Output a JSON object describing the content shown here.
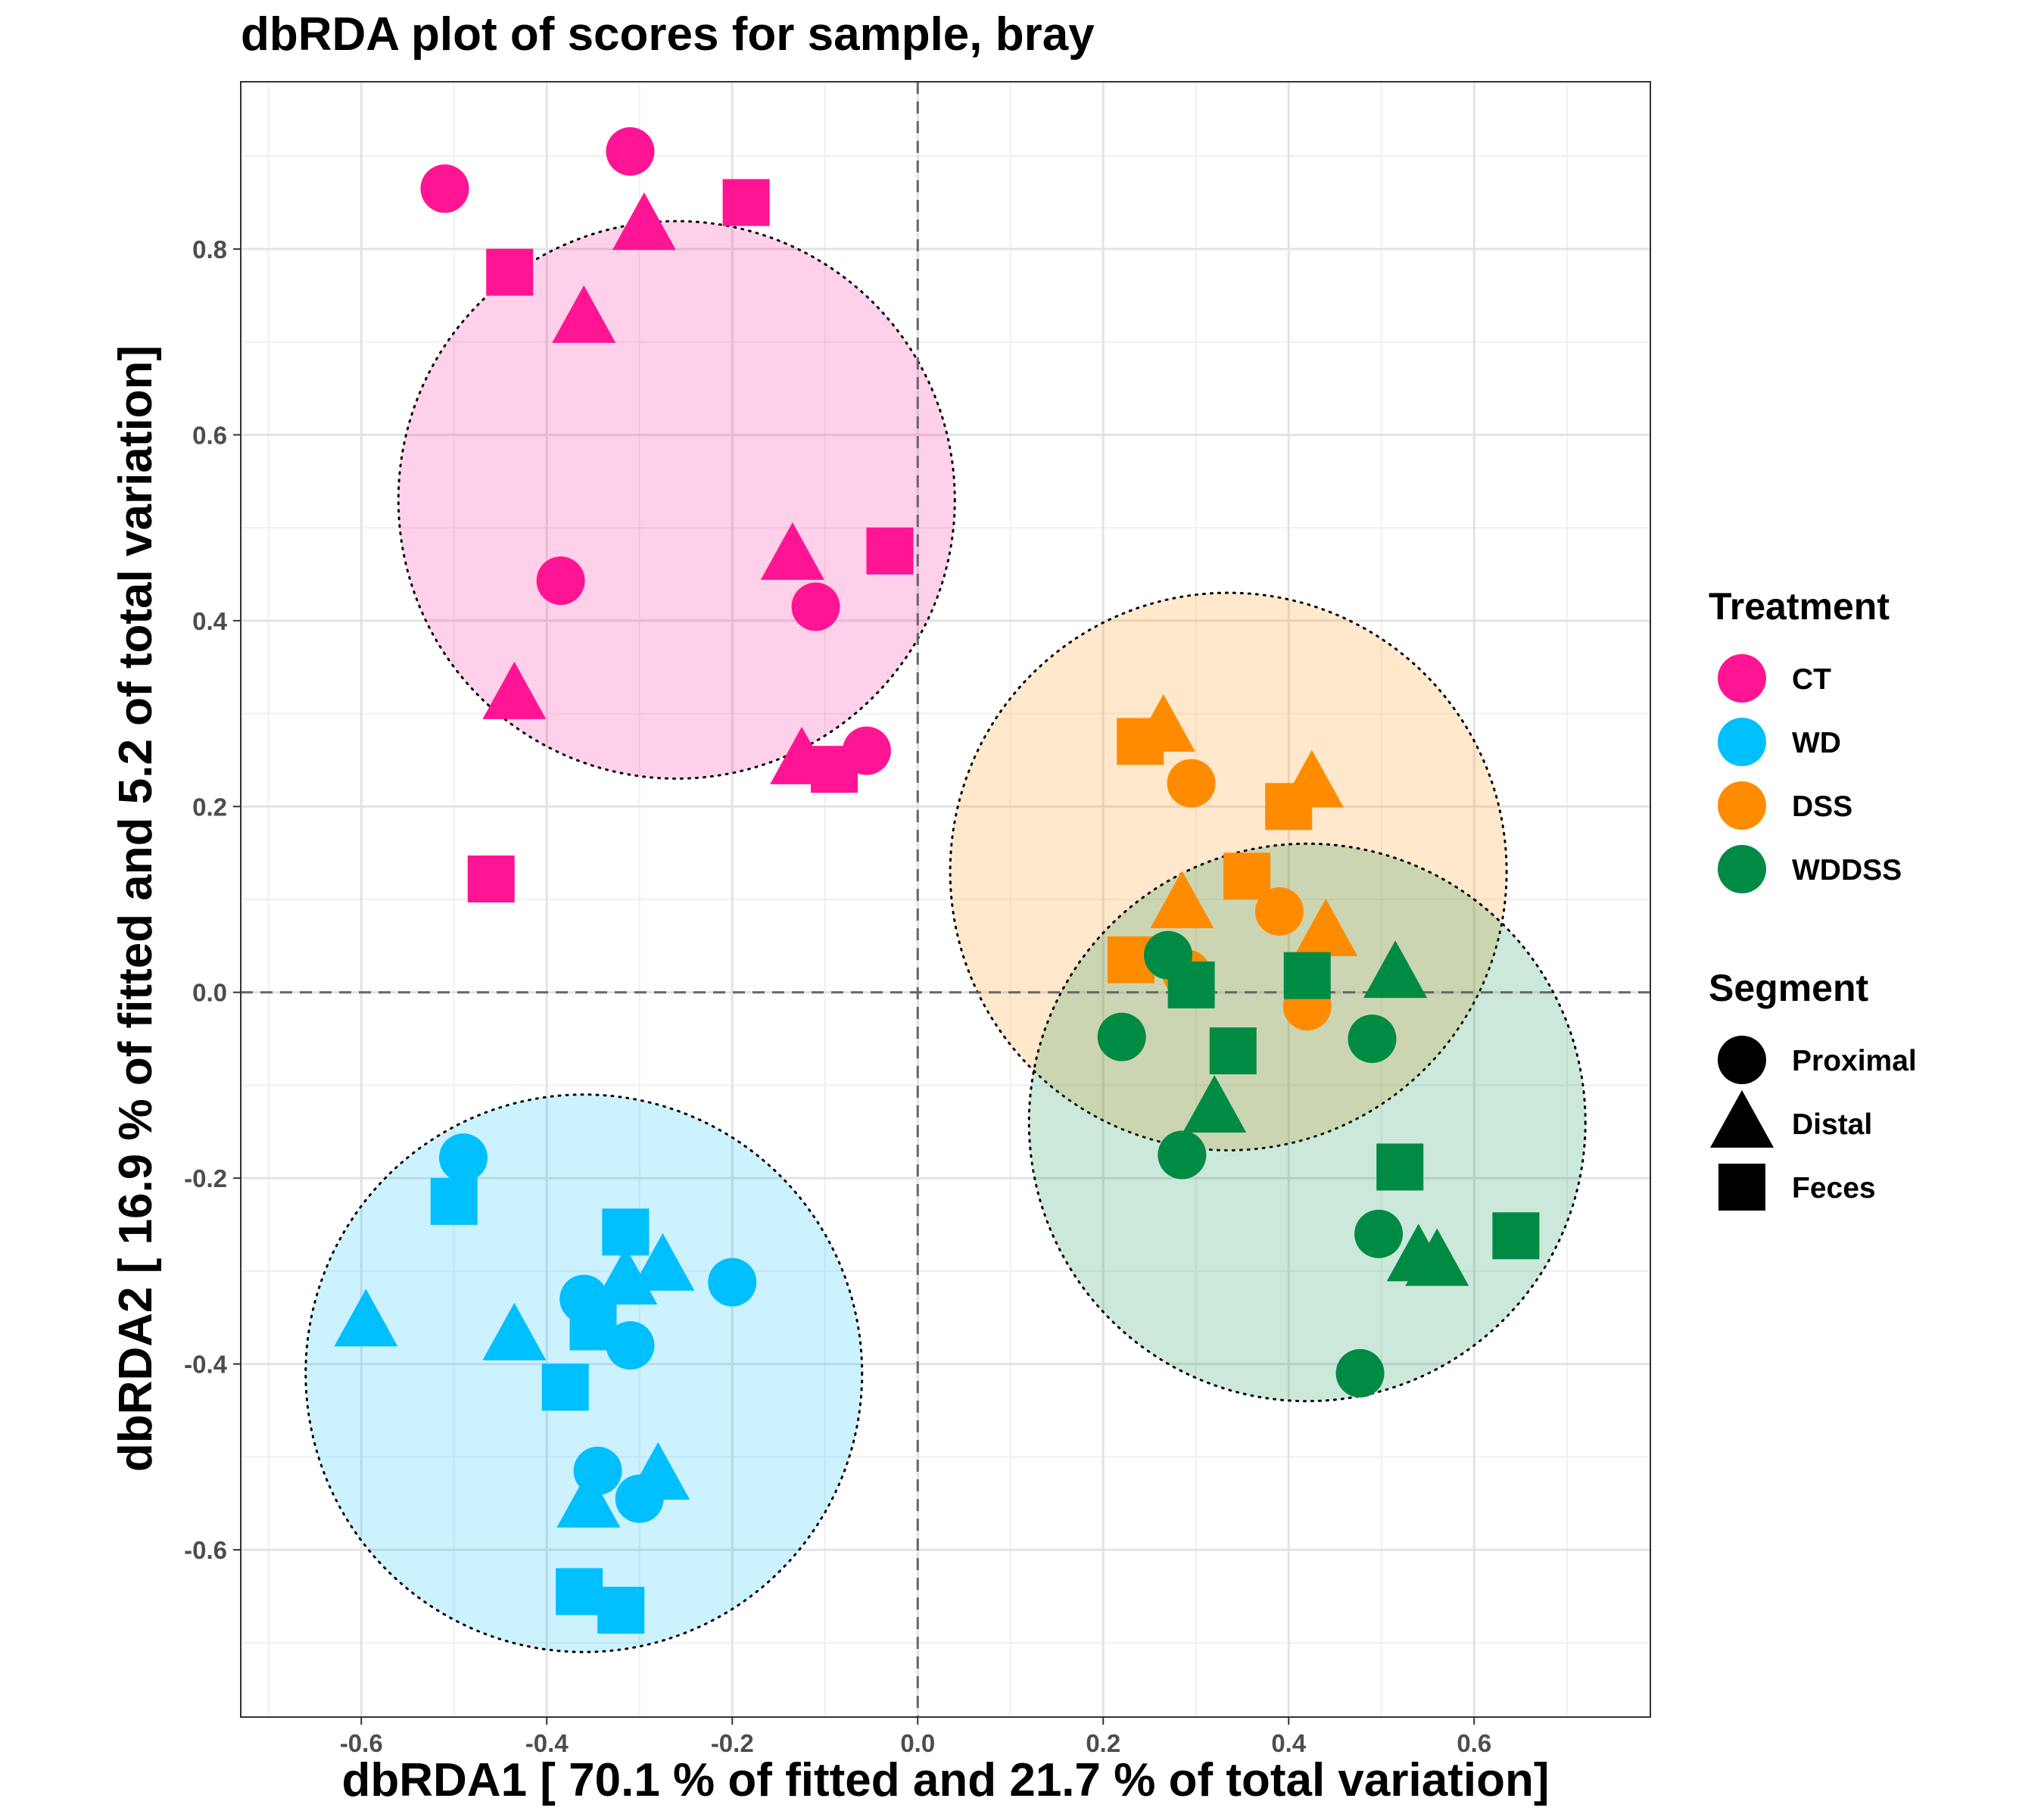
{
  "chart_data": {
    "type": "scatter",
    "title": "dbRDA plot of scores for sample, bray",
    "xlabel": "dbRDA1 [ 70.1 % of fitted and 21.7 % of total variation]",
    "ylabel": "dbRDA2 [ 16.9 % of fitted and 5.2 of total variation]",
    "xlim": [
      -0.73,
      0.79
    ],
    "ylim": [
      -0.78,
      0.98
    ],
    "x_ticks": [
      -0.6,
      -0.4,
      -0.2,
      0.0,
      0.2,
      0.4,
      0.6
    ],
    "y_ticks": [
      -0.6,
      -0.4,
      -0.2,
      0.0,
      0.2,
      0.4,
      0.6,
      0.8
    ],
    "x_tick_labels": [
      "-0.6",
      "-0.4",
      "-0.2",
      "0.0",
      "0.2",
      "0.4",
      "0.6"
    ],
    "y_tick_labels": [
      "-0.6",
      "-0.4",
      "-0.2",
      "0.0",
      "0.2",
      "0.4",
      "0.6",
      "0.8"
    ],
    "grid": true,
    "reference_lines": {
      "x": 0,
      "y": 0,
      "style": "dashed"
    },
    "legend_placement": "right",
    "legends": [
      {
        "title": "Treatment",
        "entries": [
          {
            "label": "CT",
            "color": "#FF1493"
          },
          {
            "label": "WD",
            "color": "#00BFFF"
          },
          {
            "label": "DSS",
            "color": "#FF8C00"
          },
          {
            "label": "WDDSS",
            "color": "#008B45"
          }
        ]
      },
      {
        "title": "Segment",
        "entries": [
          {
            "label": "Proximal",
            "shape": "circle"
          },
          {
            "label": "Distal",
            "shape": "triangle"
          },
          {
            "label": "Feces",
            "shape": "square"
          }
        ]
      }
    ],
    "ellipses": [
      {
        "group": "CT",
        "center": [
          -0.26,
          0.53
        ],
        "radius": [
          0.3,
          0.3
        ],
        "color": "#FF1493"
      },
      {
        "group": "WD",
        "center": [
          -0.36,
          -0.41
        ],
        "radius": [
          0.3,
          0.3
        ],
        "color": "#00BFFF"
      },
      {
        "group": "DSS",
        "center": [
          0.335,
          0.13
        ],
        "radius": [
          0.3,
          0.3
        ],
        "color": "#FF8C00"
      },
      {
        "group": "WDDSS",
        "center": [
          0.42,
          -0.14
        ],
        "radius": [
          0.3,
          0.3
        ],
        "color": "#008B45"
      }
    ],
    "series": [
      {
        "name": "CT",
        "color": "#FF1493",
        "points": [
          {
            "x": -0.51,
            "y": 0.865,
            "shape": "circle"
          },
          {
            "x": -0.31,
            "y": 0.905,
            "shape": "circle"
          },
          {
            "x": -0.385,
            "y": 0.443,
            "shape": "circle"
          },
          {
            "x": -0.11,
            "y": 0.415,
            "shape": "circle"
          },
          {
            "x": -0.055,
            "y": 0.26,
            "shape": "circle"
          },
          {
            "x": -0.295,
            "y": 0.825,
            "shape": "triangle"
          },
          {
            "x": -0.36,
            "y": 0.725,
            "shape": "triangle"
          },
          {
            "x": -0.135,
            "y": 0.47,
            "shape": "triangle"
          },
          {
            "x": -0.435,
            "y": 0.32,
            "shape": "triangle"
          },
          {
            "x": -0.125,
            "y": 0.25,
            "shape": "triangle"
          },
          {
            "x": -0.185,
            "y": 0.85,
            "shape": "square"
          },
          {
            "x": -0.44,
            "y": 0.775,
            "shape": "square"
          },
          {
            "x": -0.03,
            "y": 0.475,
            "shape": "square"
          },
          {
            "x": -0.09,
            "y": 0.24,
            "shape": "square"
          },
          {
            "x": -0.46,
            "y": 0.122,
            "shape": "square"
          }
        ]
      },
      {
        "name": "WD",
        "color": "#00BFFF",
        "points": [
          {
            "x": -0.49,
            "y": -0.178,
            "shape": "circle"
          },
          {
            "x": -0.2,
            "y": -0.312,
            "shape": "circle"
          },
          {
            "x": -0.36,
            "y": -0.33,
            "shape": "circle"
          },
          {
            "x": -0.31,
            "y": -0.38,
            "shape": "circle"
          },
          {
            "x": -0.345,
            "y": -0.515,
            "shape": "circle"
          },
          {
            "x": -0.3,
            "y": -0.545,
            "shape": "circle"
          },
          {
            "x": -0.595,
            "y": -0.355,
            "shape": "triangle"
          },
          {
            "x": -0.435,
            "y": -0.37,
            "shape": "triangle"
          },
          {
            "x": -0.315,
            "y": -0.31,
            "shape": "triangle"
          },
          {
            "x": -0.275,
            "y": -0.295,
            "shape": "triangle"
          },
          {
            "x": -0.28,
            "y": -0.52,
            "shape": "triangle"
          },
          {
            "x": -0.355,
            "y": -0.55,
            "shape": "triangle"
          },
          {
            "x": -0.5,
            "y": -0.225,
            "shape": "square"
          },
          {
            "x": -0.315,
            "y": -0.258,
            "shape": "square"
          },
          {
            "x": -0.35,
            "y": -0.36,
            "shape": "square"
          },
          {
            "x": -0.38,
            "y": -0.425,
            "shape": "square"
          },
          {
            "x": -0.365,
            "y": -0.645,
            "shape": "square"
          },
          {
            "x": -0.32,
            "y": -0.665,
            "shape": "square"
          }
        ]
      },
      {
        "name": "DSS",
        "color": "#FF8C00",
        "points": [
          {
            "x": 0.295,
            "y": 0.225,
            "shape": "circle"
          },
          {
            "x": 0.39,
            "y": 0.087,
            "shape": "circle"
          },
          {
            "x": 0.29,
            "y": 0.02,
            "shape": "circle"
          },
          {
            "x": 0.42,
            "y": -0.015,
            "shape": "circle"
          },
          {
            "x": 0.265,
            "y": 0.285,
            "shape": "triangle"
          },
          {
            "x": 0.425,
            "y": 0.225,
            "shape": "triangle"
          },
          {
            "x": 0.285,
            "y": 0.095,
            "shape": "triangle"
          },
          {
            "x": 0.44,
            "y": 0.065,
            "shape": "triangle"
          },
          {
            "x": 0.24,
            "y": 0.27,
            "shape": "square"
          },
          {
            "x": 0.4,
            "y": 0.2,
            "shape": "square"
          },
          {
            "x": 0.355,
            "y": 0.125,
            "shape": "square"
          },
          {
            "x": 0.23,
            "y": 0.035,
            "shape": "square"
          }
        ]
      },
      {
        "name": "WDDSS",
        "color": "#008B45",
        "points": [
          {
            "x": 0.22,
            "y": -0.048,
            "shape": "circle"
          },
          {
            "x": 0.49,
            "y": -0.05,
            "shape": "circle"
          },
          {
            "x": 0.285,
            "y": -0.175,
            "shape": "circle"
          },
          {
            "x": 0.497,
            "y": -0.26,
            "shape": "circle"
          },
          {
            "x": 0.477,
            "y": -0.41,
            "shape": "circle"
          },
          {
            "x": 0.27,
            "y": 0.04,
            "shape": "circle"
          },
          {
            "x": 0.515,
            "y": 0.02,
            "shape": "triangle"
          },
          {
            "x": 0.32,
            "y": -0.125,
            "shape": "triangle"
          },
          {
            "x": 0.54,
            "y": -0.285,
            "shape": "triangle"
          },
          {
            "x": 0.56,
            "y": -0.29,
            "shape": "triangle"
          },
          {
            "x": 0.295,
            "y": 0.008,
            "shape": "square"
          },
          {
            "x": 0.42,
            "y": 0.018,
            "shape": "square"
          },
          {
            "x": 0.34,
            "y": -0.063,
            "shape": "square"
          },
          {
            "x": 0.52,
            "y": -0.188,
            "shape": "square"
          },
          {
            "x": 0.645,
            "y": -0.262,
            "shape": "square"
          }
        ]
      }
    ]
  }
}
